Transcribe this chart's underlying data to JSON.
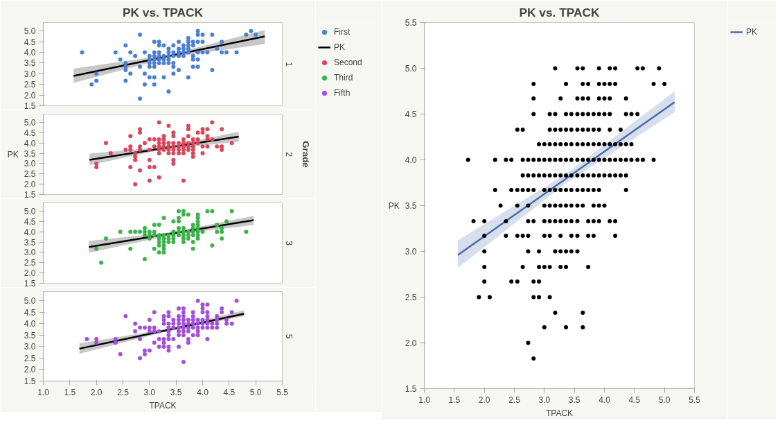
{
  "chart_data": [
    {
      "type": "scatter",
      "title": "PK vs. TPACK",
      "y2label": "1",
      "legend": "right",
      "tick_labels": "y",
      "xlim": [
        1,
        5.5
      ],
      "ylim": [
        1.5,
        5.4
      ],
      "yticks": [
        {
          "value": 1.5,
          "label": "1.5"
        },
        {
          "value": 2,
          "label": "2.0"
        },
        {
          "value": 2.5,
          "label": "2.5"
        },
        {
          "value": 3,
          "label": "3.0"
        },
        {
          "value": 3.5,
          "label": "3.5"
        },
        {
          "value": 4,
          "label": "4.0"
        },
        {
          "value": 4.5,
          "label": "4.5"
        },
        {
          "value": 5,
          "label": "5.0"
        }
      ],
      "series": [
        {
          "name": "First",
          "marker": "circle",
          "color": "#4a7fd4",
          "x": [
            1.73,
            1.91,
            2.0,
            2.0,
            2.36,
            2.45,
            2.55,
            2.55,
            2.55,
            2.55,
            2.55,
            2.64,
            2.64,
            2.73,
            2.82,
            2.82,
            2.82,
            2.91,
            2.91,
            2.91,
            3.0,
            3.0,
            3.0,
            3.0,
            3.0,
            3.09,
            3.09,
            3.09,
            3.09,
            3.09,
            3.09,
            3.09,
            3.09,
            3.18,
            3.18,
            3.18,
            3.18,
            3.18,
            3.18,
            3.27,
            3.27,
            3.27,
            3.27,
            3.27,
            3.36,
            3.36,
            3.36,
            3.36,
            3.36,
            3.36,
            3.45,
            3.45,
            3.45,
            3.45,
            3.45,
            3.45,
            3.55,
            3.55,
            3.55,
            3.55,
            3.55,
            3.64,
            3.64,
            3.64,
            3.64,
            3.73,
            3.73,
            3.73,
            3.73,
            3.73,
            3.73,
            3.82,
            3.82,
            3.82,
            3.82,
            3.82,
            3.91,
            3.91,
            3.91,
            3.91,
            3.91,
            3.91,
            4.0,
            4.0,
            4.0,
            4.09,
            4.18,
            4.18,
            4.27,
            4.36,
            4.36,
            4.45,
            4.64,
            4.82,
            4.91,
            5.0
          ],
          "values": [
            4.0,
            2.5,
            3.0,
            2.67,
            4.0,
            3.67,
            4.33,
            3.5,
            3.33,
            3.17,
            2.67,
            4.0,
            3.0,
            3.83,
            4.83,
            3.33,
            1.83,
            4.0,
            3.0,
            2.5,
            3.83,
            3.67,
            3.5,
            3.33,
            2.83,
            4.5,
            4.0,
            3.83,
            3.67,
            3.5,
            3.33,
            2.83,
            2.5,
            4.5,
            4.33,
            4.0,
            3.83,
            3.67,
            3.5,
            4.33,
            3.83,
            3.67,
            3.5,
            2.83,
            4.17,
            4.0,
            3.83,
            3.67,
            3.5,
            2.17,
            4.33,
            4.0,
            3.83,
            3.5,
            3.33,
            3.0,
            4.5,
            4.17,
            4.0,
            3.83,
            3.17,
            4.33,
            4.17,
            4.0,
            3.83,
            4.67,
            4.5,
            4.33,
            4.17,
            4.0,
            2.83,
            4.5,
            4.33,
            3.83,
            3.67,
            3.33,
            5.0,
            4.83,
            4.5,
            4.0,
            3.67,
            3.33,
            4.83,
            4.5,
            4.0,
            4.0,
            4.83,
            3.17,
            4.17,
            4.5,
            4.0,
            4.0,
            4.0,
            4.83,
            5.0,
            4.83
          ]
        },
        {
          "name": "PK",
          "type": "line",
          "color": "#000000",
          "x": [
            1.57,
            3.37,
            5.17
          ],
          "values": [
            2.9,
            3.83,
            4.75
          ],
          "lower": [
            2.57,
            3.76,
            4.39
          ],
          "upper": [
            3.24,
            3.9,
            5.05
          ]
        }
      ]
    },
    {
      "type": "scatter",
      "ylabel": "PK",
      "y2label": "2",
      "annotations": [
        "Grade"
      ],
      "tick_labels": "y",
      "xlim": [
        1,
        5.5
      ],
      "ylim": [
        1.5,
        5.4
      ],
      "yticks": [
        {
          "value": 1.5,
          "label": "1.5"
        },
        {
          "value": 2,
          "label": "2.0"
        },
        {
          "value": 2.5,
          "label": "2.5"
        },
        {
          "value": 3,
          "label": "3.0"
        },
        {
          "value": 3.5,
          "label": "3.5"
        },
        {
          "value": 4,
          "label": "4.0"
        },
        {
          "value": 4.5,
          "label": "4.5"
        },
        {
          "value": 5,
          "label": "5.0"
        }
      ],
      "series": [
        {
          "name": "Second",
          "marker": "circle",
          "color": "#d9475a",
          "x": [
            2.0,
            2.0,
            2.18,
            2.27,
            2.55,
            2.64,
            2.64,
            2.64,
            2.64,
            2.73,
            2.73,
            2.73,
            2.73,
            2.82,
            2.82,
            2.82,
            2.82,
            2.82,
            2.91,
            3.0,
            3.0,
            3.0,
            3.0,
            3.0,
            3.09,
            3.09,
            3.09,
            3.18,
            3.18,
            3.18,
            3.18,
            3.18,
            3.18,
            3.18,
            3.27,
            3.27,
            3.27,
            3.27,
            3.27,
            3.36,
            3.36,
            3.36,
            3.36,
            3.36,
            3.45,
            3.45,
            3.45,
            3.45,
            3.45,
            3.45,
            3.45,
            3.45,
            3.55,
            3.55,
            3.55,
            3.55,
            3.64,
            3.64,
            3.64,
            3.64,
            3.64,
            3.64,
            3.73,
            3.73,
            3.73,
            3.73,
            3.73,
            3.73,
            3.82,
            3.82,
            3.82,
            3.82,
            3.82,
            3.82,
            3.91,
            3.91,
            3.91,
            4.0,
            4.0,
            4.0,
            4.0,
            4.09,
            4.09,
            4.09,
            4.09,
            4.18,
            4.18,
            4.27,
            4.36,
            4.36,
            4.36,
            4.55
          ],
          "values": [
            3.0,
            2.83,
            4.0,
            3.5,
            3.67,
            4.33,
            3.83,
            3.67,
            2.83,
            3.5,
            3.33,
            3.17,
            2.0,
            4.67,
            4.5,
            3.83,
            3.67,
            2.67,
            4.0,
            4.17,
            3.67,
            3.17,
            2.83,
            2.17,
            4.17,
            3.83,
            2.83,
            5.0,
            4.17,
            4.0,
            3.83,
            3.67,
            3.5,
            2.33,
            4.33,
            4.17,
            4.0,
            3.83,
            3.67,
            4.83,
            4.0,
            3.83,
            3.67,
            3.5,
            4.5,
            4.33,
            4.0,
            3.83,
            3.67,
            3.5,
            3.17,
            3.0,
            4.0,
            3.83,
            3.67,
            3.5,
            4.17,
            4.0,
            3.83,
            3.67,
            3.5,
            2.17,
            4.83,
            4.67,
            4.33,
            4.0,
            3.83,
            3.67,
            4.17,
            4.0,
            3.83,
            3.67,
            3.5,
            3.33,
            4.5,
            4.17,
            4.0,
            4.67,
            4.5,
            3.83,
            3.5,
            4.67,
            4.33,
            4.17,
            3.83,
            5.0,
            4.17,
            3.83,
            4.67,
            3.83,
            3.67,
            4.0
          ]
        },
        {
          "type": "line",
          "color": "#000000",
          "x": [
            1.87,
            3.28,
            4.68
          ],
          "values": [
            3.18,
            3.75,
            4.31
          ],
          "lower": [
            2.93,
            3.69,
            4.06
          ],
          "upper": [
            3.48,
            3.81,
            4.54
          ]
        }
      ]
    },
    {
      "type": "scatter",
      "y2label": "3",
      "tick_labels": "y",
      "xlim": [
        1,
        5.5
      ],
      "ylim": [
        1.5,
        5.4
      ],
      "yticks": [
        {
          "value": 1.5,
          "label": "1.5"
        },
        {
          "value": 2,
          "label": "2.0"
        },
        {
          "value": 2.5,
          "label": "2.5"
        },
        {
          "value": 3,
          "label": "3.0"
        },
        {
          "value": 3.5,
          "label": "3.5"
        },
        {
          "value": 4,
          "label": "4.0"
        },
        {
          "value": 4.5,
          "label": "4.5"
        },
        {
          "value": 5,
          "label": "5.0"
        }
      ],
      "series": [
        {
          "name": "Third",
          "marker": "circle",
          "color": "#3bb34a",
          "x": [
            2.0,
            2.09,
            2.18,
            2.45,
            2.64,
            2.64,
            2.73,
            2.82,
            2.91,
            2.91,
            2.91,
            2.91,
            3.0,
            3.0,
            3.0,
            3.09,
            3.09,
            3.09,
            3.09,
            3.18,
            3.18,
            3.18,
            3.18,
            3.18,
            3.18,
            3.27,
            3.27,
            3.27,
            3.27,
            3.27,
            3.27,
            3.27,
            3.36,
            3.36,
            3.36,
            3.45,
            3.45,
            3.45,
            3.45,
            3.45,
            3.55,
            3.55,
            3.55,
            3.55,
            3.55,
            3.55,
            3.64,
            3.64,
            3.64,
            3.64,
            3.64,
            3.64,
            3.64,
            3.73,
            3.73,
            3.73,
            3.73,
            3.82,
            3.82,
            3.82,
            3.82,
            3.82,
            3.82,
            3.91,
            3.91,
            3.91,
            3.91,
            3.91,
            3.91,
            3.91,
            3.91,
            4.0,
            4.09,
            4.18,
            4.18,
            4.27,
            4.27,
            4.36,
            4.36,
            4.36,
            4.45,
            4.55,
            4.82
          ],
          "values": [
            3.17,
            2.5,
            3.67,
            4.0,
            4.0,
            3.17,
            4.0,
            4.0,
            4.17,
            4.0,
            3.83,
            2.67,
            4.0,
            3.83,
            3.67,
            4.33,
            4.0,
            3.83,
            3.17,
            4.33,
            3.83,
            3.67,
            3.5,
            3.33,
            3.0,
            4.67,
            3.83,
            3.67,
            3.5,
            3.33,
            3.17,
            3.0,
            3.83,
            3.67,
            3.5,
            4.5,
            4.0,
            3.83,
            3.67,
            3.5,
            5.0,
            4.67,
            4.5,
            4.17,
            4.0,
            3.83,
            5.0,
            4.83,
            4.17,
            4.0,
            3.83,
            3.67,
            3.5,
            4.83,
            4.0,
            3.83,
            3.67,
            4.33,
            4.17,
            4.0,
            3.83,
            3.5,
            3.17,
            4.83,
            4.67,
            4.5,
            4.33,
            4.17,
            4.0,
            3.83,
            3.67,
            4.0,
            5.0,
            5.0,
            3.33,
            4.33,
            4.0,
            4.17,
            4.0,
            3.67,
            4.5,
            5.0,
            4.0
          ]
        },
        {
          "type": "line",
          "color": "#000000",
          "x": [
            1.86,
            3.41,
            4.96
          ],
          "values": [
            3.26,
            3.91,
            4.56
          ],
          "lower": [
            2.98,
            3.84,
            4.32
          ],
          "upper": [
            3.55,
            3.98,
            4.77
          ]
        }
      ]
    },
    {
      "type": "scatter",
      "xlabel": "TPACK",
      "y2label": "5",
      "xlim": [
        1,
        5.5
      ],
      "ylim": [
        1.5,
        5.4
      ],
      "xticks": [
        {
          "value": 1,
          "label": "1.0"
        },
        {
          "value": 1.5,
          "label": "1.5"
        },
        {
          "value": 2,
          "label": "2.0"
        },
        {
          "value": 2.5,
          "label": "2.5"
        },
        {
          "value": 3,
          "label": "3.0"
        },
        {
          "value": 3.5,
          "label": "3.5"
        },
        {
          "value": 4,
          "label": "4.0"
        },
        {
          "value": 4.5,
          "label": "4.5"
        },
        {
          "value": 5,
          "label": "5.0"
        },
        {
          "value": 5.5,
          "label": "5.5"
        }
      ],
      "yticks": [
        {
          "value": 1.5,
          "label": "1.5"
        },
        {
          "value": 2,
          "label": "2.0"
        },
        {
          "value": 2.5,
          "label": "2.5"
        },
        {
          "value": 3,
          "label": "3.0"
        },
        {
          "value": 3.5,
          "label": "3.5"
        },
        {
          "value": 4,
          "label": "4.0"
        },
        {
          "value": 4.5,
          "label": "4.5"
        },
        {
          "value": 5,
          "label": "5.0"
        }
      ],
      "series": [
        {
          "name": "Fifth",
          "marker": "circle",
          "color": "#a24fdc",
          "x": [
            1.82,
            2.0,
            2.0,
            2.36,
            2.36,
            2.45,
            2.55,
            2.73,
            2.73,
            2.82,
            2.82,
            2.82,
            2.91,
            2.91,
            2.91,
            3.0,
            3.0,
            3.0,
            3.0,
            3.09,
            3.09,
            3.09,
            3.09,
            3.18,
            3.18,
            3.18,
            3.27,
            3.27,
            3.27,
            3.27,
            3.27,
            3.27,
            3.36,
            3.36,
            3.36,
            3.36,
            3.36,
            3.36,
            3.36,
            3.36,
            3.36,
            3.45,
            3.45,
            3.45,
            3.45,
            3.55,
            3.55,
            3.55,
            3.55,
            3.55,
            3.55,
            3.55,
            3.55,
            3.64,
            3.64,
            3.64,
            3.64,
            3.64,
            3.64,
            3.64,
            3.64,
            3.64,
            3.73,
            3.73,
            3.73,
            3.73,
            3.73,
            3.73,
            3.82,
            3.82,
            3.82,
            3.82,
            3.82,
            3.82,
            3.91,
            3.91,
            3.91,
            3.91,
            3.91,
            3.91,
            4.0,
            4.0,
            4.0,
            4.0,
            4.0,
            4.0,
            4.09,
            4.09,
            4.09,
            4.09,
            4.09,
            4.09,
            4.09,
            4.18,
            4.18,
            4.27,
            4.27,
            4.27,
            4.27,
            4.36,
            4.36,
            4.45,
            4.45,
            4.55,
            4.55,
            4.64
          ],
          "values": [
            3.33,
            3.33,
            3.17,
            3.33,
            3.17,
            2.67,
            4.33,
            4.0,
            3.67,
            3.83,
            3.33,
            2.5,
            3.83,
            2.83,
            2.67,
            4.17,
            3.83,
            3.67,
            2.83,
            4.5,
            3.83,
            3.67,
            3.17,
            3.67,
            3.33,
            3.0,
            4.33,
            4.17,
            4.0,
            3.33,
            3.17,
            3.0,
            4.5,
            4.33,
            4.0,
            3.83,
            3.67,
            3.5,
            3.33,
            3.0,
            2.83,
            4.17,
            4.0,
            3.83,
            3.33,
            4.67,
            4.33,
            4.17,
            4.0,
            3.83,
            3.67,
            3.5,
            3.0,
            4.67,
            4.5,
            4.33,
            4.17,
            4.0,
            3.83,
            3.67,
            3.5,
            2.33,
            4.17,
            4.0,
            3.83,
            3.67,
            3.33,
            3.17,
            4.5,
            4.33,
            4.17,
            4.0,
            3.83,
            3.5,
            5.0,
            4.17,
            4.0,
            3.83,
            3.67,
            3.5,
            4.83,
            4.67,
            4.5,
            4.17,
            4.0,
            3.83,
            4.83,
            4.5,
            4.33,
            4.17,
            4.0,
            3.83,
            3.33,
            4.0,
            3.83,
            4.33,
            4.17,
            4.0,
            3.83,
            4.67,
            4.5,
            4.17,
            4.0,
            4.5,
            4.0,
            5.0
          ]
        },
        {
          "type": "line",
          "color": "#000000",
          "x": [
            1.68,
            3.23,
            4.78
          ],
          "values": [
            2.91,
            3.67,
            4.43
          ],
          "lower": [
            2.69,
            3.61,
            4.33
          ],
          "upper": [
            3.14,
            3.73,
            4.58
          ]
        }
      ]
    },
    {
      "type": "scatter",
      "title": "PK vs. TPACK",
      "xlabel": "TPACK",
      "ylabel": "PK",
      "legend": "right",
      "xlim": [
        1,
        5.5
      ],
      "ylim": [
        1.5,
        5.5
      ],
      "xticks": [
        {
          "value": 1,
          "label": "1.0"
        },
        {
          "value": 1.5,
          "label": "1.5"
        },
        {
          "value": 2,
          "label": "2.0"
        },
        {
          "value": 2.5,
          "label": "2.5"
        },
        {
          "value": 3,
          "label": "3.0"
        },
        {
          "value": 3.5,
          "label": "3.5"
        },
        {
          "value": 4,
          "label": "4.0"
        },
        {
          "value": 4.5,
          "label": "4.5"
        },
        {
          "value": 5,
          "label": "5.0"
        },
        {
          "value": 5.5,
          "label": "5.5"
        }
      ],
      "yticks": [
        {
          "value": 1.5,
          "label": "1.5"
        },
        {
          "value": 2,
          "label": "2.0"
        },
        {
          "value": 2.5,
          "label": "2.5"
        },
        {
          "value": 3,
          "label": "3.0"
        },
        {
          "value": 3.5,
          "label": "3.5"
        },
        {
          "value": 4,
          "label": "4.0"
        },
        {
          "value": 4.5,
          "label": "4.5"
        },
        {
          "value": 5,
          "label": "5.0"
        },
        {
          "value": 5.5,
          "label": "5.5"
        }
      ],
      "series": [
        {
          "marker": "circle",
          "color": "#000000",
          "x": [
            3.18,
            3.55,
            3.64,
            3.91,
            4.09,
            4.18,
            4.55,
            4.64,
            4.91,
            2.82,
            3.36,
            3.64,
            3.73,
            3.91,
            4.0,
            4.09,
            4.18,
            4.82,
            5.0,
            2.82,
            3.27,
            3.55,
            3.64,
            3.73,
            3.91,
            4.0,
            4.09,
            4.36,
            2.82,
            3.09,
            3.18,
            3.36,
            3.45,
            3.55,
            3.64,
            3.73,
            3.82,
            3.91,
            4.0,
            4.09,
            4.36,
            4.45,
            4.55,
            2.55,
            2.64,
            3.09,
            3.18,
            3.27,
            3.36,
            3.45,
            3.55,
            3.64,
            3.73,
            3.82,
            3.91,
            4.09,
            4.27,
            2.91,
            3.0,
            3.09,
            3.18,
            3.27,
            3.36,
            3.45,
            3.55,
            3.64,
            3.73,
            3.82,
            3.91,
            4.0,
            4.09,
            4.18,
            4.27,
            4.36,
            4.45,
            1.73,
            2.18,
            2.36,
            2.45,
            2.64,
            2.73,
            2.82,
            2.91,
            3.0,
            3.09,
            3.18,
            3.27,
            3.36,
            3.45,
            3.55,
            3.64,
            3.73,
            3.82,
            3.91,
            4.0,
            4.09,
            4.18,
            4.27,
            4.36,
            4.45,
            4.55,
            4.64,
            4.82,
            2.64,
            2.73,
            2.82,
            2.91,
            3.0,
            3.09,
            3.18,
            3.27,
            3.36,
            3.45,
            3.55,
            3.64,
            3.73,
            3.82,
            3.91,
            4.0,
            4.09,
            4.18,
            4.27,
            4.36,
            2.18,
            2.45,
            2.55,
            2.64,
            2.73,
            2.82,
            3.0,
            3.09,
            3.18,
            3.27,
            3.36,
            3.45,
            3.55,
            3.64,
            3.73,
            3.82,
            3.91,
            4.36,
            2.27,
            2.55,
            2.73,
            3.0,
            3.09,
            3.18,
            3.27,
            3.36,
            3.45,
            3.55,
            3.64,
            3.82,
            3.91,
            4.0,
            1.82,
            2.0,
            2.36,
            2.73,
            2.82,
            3.0,
            3.09,
            3.18,
            3.27,
            3.36,
            3.45,
            3.55,
            3.73,
            3.82,
            3.91,
            4.09,
            4.18,
            2.0,
            2.36,
            2.55,
            2.64,
            2.73,
            3.0,
            3.09,
            3.27,
            3.45,
            3.55,
            3.73,
            3.82,
            4.18,
            2.0,
            2.73,
            2.91,
            3.18,
            3.27,
            3.36,
            3.45,
            3.55,
            2.0,
            2.64,
            2.91,
            3.0,
            3.09,
            3.27,
            3.36,
            3.73,
            2.0,
            2.45,
            2.55,
            2.82,
            2.91,
            1.91,
            2.09,
            2.82,
            2.91,
            3.09,
            3.18,
            3.64,
            3.0,
            3.36,
            3.64,
            2.73,
            2.82
          ],
          "values": [
            5.0,
            5.0,
            5.0,
            5.0,
            5.0,
            5.0,
            5.0,
            5.0,
            5.0,
            4.83,
            4.83,
            4.83,
            4.83,
            4.83,
            4.83,
            4.83,
            4.83,
            4.83,
            4.83,
            4.67,
            4.67,
            4.67,
            4.67,
            4.67,
            4.67,
            4.67,
            4.67,
            4.67,
            4.5,
            4.5,
            4.5,
            4.5,
            4.5,
            4.5,
            4.5,
            4.5,
            4.5,
            4.5,
            4.5,
            4.5,
            4.5,
            4.5,
            4.5,
            4.33,
            4.33,
            4.33,
            4.33,
            4.33,
            4.33,
            4.33,
            4.33,
            4.33,
            4.33,
            4.33,
            4.33,
            4.33,
            4.33,
            4.17,
            4.17,
            4.17,
            4.17,
            4.17,
            4.17,
            4.17,
            4.17,
            4.17,
            4.17,
            4.17,
            4.17,
            4.17,
            4.17,
            4.17,
            4.17,
            4.17,
            4.17,
            4.0,
            4.0,
            4.0,
            4.0,
            4.0,
            4.0,
            4.0,
            4.0,
            4.0,
            4.0,
            4.0,
            4.0,
            4.0,
            4.0,
            4.0,
            4.0,
            4.0,
            4.0,
            4.0,
            4.0,
            4.0,
            4.0,
            4.0,
            4.0,
            4.0,
            4.0,
            4.0,
            4.0,
            3.83,
            3.83,
            3.83,
            3.83,
            3.83,
            3.83,
            3.83,
            3.83,
            3.83,
            3.83,
            3.83,
            3.83,
            3.83,
            3.83,
            3.83,
            3.83,
            3.83,
            3.83,
            3.83,
            3.83,
            3.67,
            3.67,
            3.67,
            3.67,
            3.67,
            3.67,
            3.67,
            3.67,
            3.67,
            3.67,
            3.67,
            3.67,
            3.67,
            3.67,
            3.67,
            3.67,
            3.67,
            3.67,
            3.5,
            3.5,
            3.5,
            3.5,
            3.5,
            3.5,
            3.5,
            3.5,
            3.5,
            3.5,
            3.5,
            3.5,
            3.5,
            3.5,
            3.33,
            3.33,
            3.33,
            3.33,
            3.33,
            3.33,
            3.33,
            3.33,
            3.33,
            3.33,
            3.33,
            3.33,
            3.33,
            3.33,
            3.33,
            3.33,
            3.33,
            3.17,
            3.17,
            3.17,
            3.17,
            3.17,
            3.17,
            3.17,
            3.17,
            3.17,
            3.17,
            3.17,
            3.17,
            3.17,
            3.0,
            3.0,
            3.0,
            3.0,
            3.0,
            3.0,
            3.0,
            3.0,
            2.83,
            2.83,
            2.83,
            2.83,
            2.83,
            2.83,
            2.83,
            2.83,
            2.67,
            2.67,
            2.67,
            2.67,
            2.67,
            2.5,
            2.5,
            2.5,
            2.5,
            2.5,
            2.33,
            2.33,
            2.17,
            2.17,
            2.17,
            2.0,
            1.83
          ]
        },
        {
          "name": "PK",
          "type": "line",
          "color": "#4a6aa8",
          "x": [
            1.56,
            3.37,
            5.17
          ],
          "values": [
            2.96,
            3.8,
            4.63
          ],
          "lower": [
            2.82,
            3.75,
            4.52
          ],
          "upper": [
            3.12,
            3.85,
            4.75
          ]
        }
      ]
    }
  ]
}
